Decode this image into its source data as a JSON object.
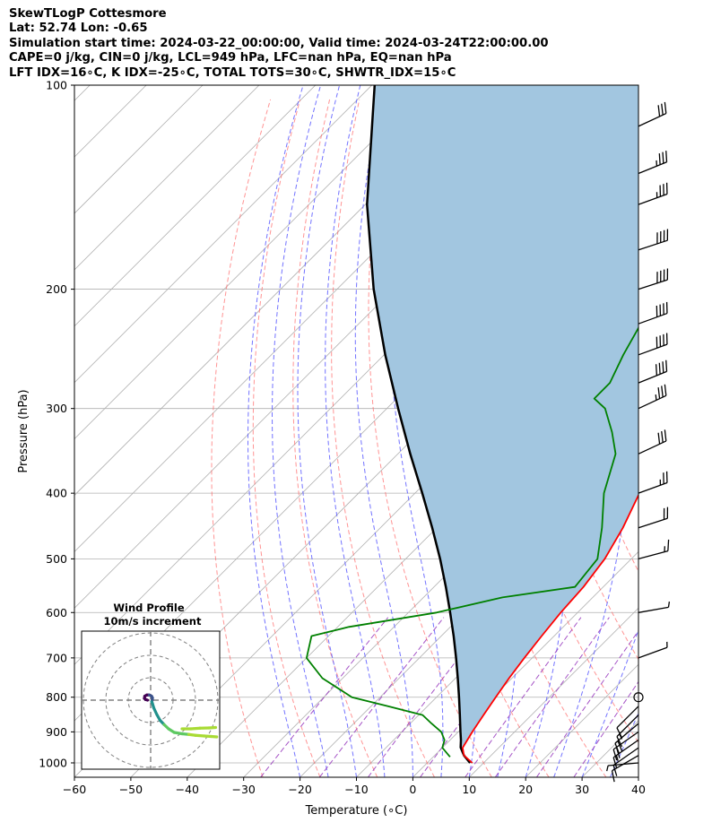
{
  "header": {
    "line1": "SkewTLogP Cottesmore",
    "line2": "Lat: 52.74   Lon: -0.65",
    "line3": "Simulation start time: 2024-03-22_00:00:00, Valid time: 2024-03-24T22:00:00.00",
    "line4": "CAPE=0 j/kg, CIN=0 j/kg, LCL=949 hPa, LFC=nan hPa, EQ=nan hPa",
    "line5": "LFT IDX=16∘C, K IDX=-25∘C, TOTAL TOTS=30∘C, SHWTR_IDX=15∘C"
  },
  "chart_data": {
    "type": "skewt",
    "xlabel": "Temperature (∘C)",
    "ylabel": "Pressure (hPa)",
    "xlim": [
      -60,
      40
    ],
    "ylim": [
      1050,
      100
    ],
    "x_ticks": [
      "−60",
      "−50",
      "−40",
      "−30",
      "−20",
      "−10",
      "0",
      "10",
      "20",
      "30",
      "40"
    ],
    "y_ticks": [
      "100",
      "200",
      "300",
      "400",
      "500",
      "600",
      "700",
      "800",
      "900",
      "1000"
    ],
    "y_tick_values": [
      100,
      200,
      300,
      400,
      500,
      600,
      700,
      800,
      900,
      1000
    ],
    "grid": true,
    "colors": {
      "temperature": "#ff0000",
      "dewpoint": "#008000",
      "parcel": "#000000",
      "shade": "#a2c6e0",
      "dry_adiabat": "#ff6666",
      "moist_adiabat": "#5a5aff",
      "mixing_ratio": "#9b40c0"
    },
    "temperature": [
      [
        1000,
        8
      ],
      [
        975,
        5.2
      ],
      [
        950,
        3.6
      ],
      [
        900,
        2.5
      ],
      [
        850,
        1.5
      ],
      [
        800,
        0.5
      ],
      [
        750,
        -0.5
      ],
      [
        700,
        -1.4
      ],
      [
        650,
        -2.2
      ],
      [
        600,
        -3.0
      ],
      [
        550,
        -3.5
      ],
      [
        500,
        -4.7
      ],
      [
        450,
        -7.0
      ],
      [
        400,
        -10.2
      ],
      [
        350,
        -14.0
      ],
      [
        300,
        -19.2
      ],
      [
        275,
        -22.5
      ],
      [
        250,
        -26.6
      ],
      [
        225,
        -31.4
      ],
      [
        200,
        -37.3
      ],
      [
        175,
        -43.0
      ],
      [
        165,
        -43.0
      ],
      [
        150,
        -43.5
      ],
      [
        140,
        -47.0
      ],
      [
        125,
        -50.0
      ],
      [
        110,
        -52.0
      ],
      [
        100,
        -54.0
      ]
    ],
    "dewpoint": [
      [
        980,
        3.0
      ],
      [
        975,
        2.5
      ],
      [
        950,
        0.0
      ],
      [
        925,
        -1.0
      ],
      [
        900,
        -3.0
      ],
      [
        875,
        -6.2
      ],
      [
        850,
        -9.3
      ],
      [
        825,
        -17.0
      ],
      [
        800,
        -25.0
      ],
      [
        750,
        -33.6
      ],
      [
        700,
        -40.0
      ],
      [
        650,
        -43.0
      ],
      [
        630,
        -38.0
      ],
      [
        600,
        -25.0
      ],
      [
        570,
        -16.0
      ],
      [
        550,
        -5.0
      ],
      [
        500,
        -6.0
      ],
      [
        450,
        -10.7
      ],
      [
        400,
        -16.5
      ],
      [
        350,
        -21.4
      ],
      [
        325,
        -25.9
      ],
      [
        300,
        -31.3
      ],
      [
        290,
        -35.0
      ],
      [
        275,
        -35.0
      ],
      [
        250,
        -37.6
      ],
      [
        225,
        -40.0
      ],
      [
        200,
        -43.4
      ],
      [
        180,
        -45.3
      ],
      [
        165,
        -47.5
      ],
      [
        150,
        -52.0
      ],
      [
        140,
        -58.0
      ],
      [
        130,
        -61.0
      ],
      [
        120,
        -64.0
      ],
      [
        100,
        -75.0
      ]
    ],
    "parcel": [
      [
        1000,
        7.6
      ],
      [
        975,
        5.2
      ],
      [
        949,
        3.2
      ],
      [
        925,
        1.9
      ],
      [
        900,
        0.4
      ],
      [
        850,
        -2.7
      ],
      [
        800,
        -6.0
      ],
      [
        750,
        -9.6
      ],
      [
        700,
        -13.5
      ],
      [
        650,
        -17.8
      ],
      [
        600,
        -22.6
      ],
      [
        550,
        -27.9
      ],
      [
        500,
        -33.9
      ],
      [
        450,
        -40.8
      ],
      [
        400,
        -48.7
      ],
      [
        350,
        -57.8
      ],
      [
        300,
        -68.0
      ],
      [
        250,
        -79.8
      ],
      [
        200,
        -93.5
      ],
      [
        150,
        -109.7
      ],
      [
        100,
        -129.5
      ]
    ],
    "wind_barbs": [
      [
        1000,
        5,
        265
      ],
      [
        975,
        10,
        240
      ],
      [
        950,
        12,
        235
      ],
      [
        925,
        15,
        235
      ],
      [
        900,
        18,
        235
      ],
      [
        875,
        18,
        230
      ],
      [
        850,
        16,
        225
      ],
      [
        825,
        10,
        225
      ],
      [
        800,
        2,
        0
      ],
      [
        700,
        3,
        70
      ],
      [
        600,
        5,
        80
      ],
      [
        500,
        15,
        75
      ],
      [
        450,
        20,
        72
      ],
      [
        400,
        25,
        70
      ],
      [
        350,
        30,
        65
      ],
      [
        300,
        35,
        65
      ],
      [
        275,
        38,
        68
      ],
      [
        250,
        40,
        70
      ],
      [
        225,
        42,
        70
      ],
      [
        200,
        40,
        72
      ],
      [
        175,
        38,
        72
      ],
      [
        150,
        36,
        70
      ],
      [
        135,
        35,
        68
      ],
      [
        115,
        32,
        65
      ]
    ],
    "hodograph": {
      "title": "Wind Profile",
      "subtitle": "10m/s increment",
      "colors": [
        "#440154",
        "#3b528b",
        "#21918c",
        "#5ec962",
        "#a8db34"
      ],
      "points": [
        [
          -1.4,
          0.0
        ],
        [
          -2.3,
          0.3
        ],
        [
          -2.8,
          0.8
        ],
        [
          -2.6,
          1.8
        ],
        [
          -1.7,
          2.3
        ],
        [
          -0.6,
          2.3
        ],
        [
          0.4,
          1.8
        ],
        [
          0.8,
          1.0
        ],
        [
          0.7,
          0.1
        ],
        [
          0.5,
          -0.7
        ],
        [
          0.8,
          -1.5
        ],
        [
          1.4,
          -3.5
        ],
        [
          2.8,
          -6.5
        ],
        [
          4.2,
          -9.0
        ],
        [
          6.0,
          -10.9
        ],
        [
          8.0,
          -12.8
        ],
        [
          10.5,
          -14.4
        ],
        [
          14.0,
          -15.0
        ],
        [
          17.0,
          -15.3
        ],
        [
          20.0,
          -15.7
        ],
        [
          24.0,
          -16.0
        ],
        [
          27.0,
          -16.2
        ],
        [
          29.5,
          -16.4
        ]
      ],
      "extra_points": [
        [
          14.0,
          -12.8
        ],
        [
          18.0,
          -12.8
        ],
        [
          22.0,
          -12.5
        ],
        [
          26.0,
          -12.4
        ],
        [
          29.0,
          -12.2
        ]
      ]
    }
  }
}
